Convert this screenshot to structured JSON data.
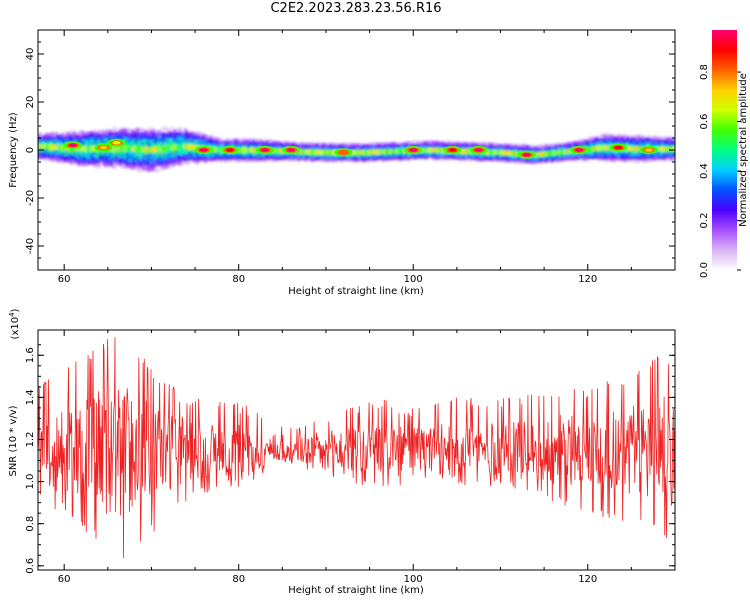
{
  "title": "C2E2.2023.283.23.56.R16",
  "chart_data": [
    {
      "type": "heatmap",
      "title": "",
      "xlabel": "Height of straight line (km)",
      "ylabel": "Frequency (Hz)",
      "xlim": [
        57,
        130
      ],
      "ylim": [
        -50,
        50
      ],
      "xticks": [
        60,
        80,
        100,
        120
      ],
      "yticks": [
        40,
        20,
        0,
        -20,
        -40
      ],
      "colorbar": {
        "label": "Normalized spectral amplitude",
        "range": [
          0,
          0.97
        ],
        "ticks": [
          0.0,
          0.2,
          0.4,
          0.6,
          0.8
        ],
        "colormap": [
          "#ffffff",
          "#d9b3f5",
          "#a64dff",
          "#4b00ff",
          "#0050ff",
          "#00d0ff",
          "#00ff80",
          "#40ff00",
          "#d0ff00",
          "#ffd000",
          "#ff6000",
          "#ff0000",
          "#ff0070"
        ]
      },
      "band": {
        "description_values": "spectral amplitude concentrated near 0 Hz across heights",
        "center_hz": [
          {
            "x": 58,
            "y": 1.5
          },
          {
            "x": 62,
            "y": 0.5
          },
          {
            "x": 66,
            "y": 1.0
          },
          {
            "x": 70,
            "y": 0.0
          },
          {
            "x": 74,
            "y": 1.5
          },
          {
            "x": 78,
            "y": 0.0
          },
          {
            "x": 82,
            "y": 0.0
          },
          {
            "x": 86,
            "y": -0.5
          },
          {
            "x": 90,
            "y": -1.0
          },
          {
            "x": 94,
            "y": -1.0
          },
          {
            "x": 98,
            "y": -0.5
          },
          {
            "x": 102,
            "y": 0.0
          },
          {
            "x": 106,
            "y": -0.5
          },
          {
            "x": 110,
            "y": -1.0
          },
          {
            "x": 114,
            "y": -2.0
          },
          {
            "x": 118,
            "y": -0.5
          },
          {
            "x": 122,
            "y": 1.0
          },
          {
            "x": 126,
            "y": 0.5
          },
          {
            "x": 130,
            "y": 0.5
          }
        ],
        "halfwidth_hz": [
          {
            "x": 58,
            "y": 6
          },
          {
            "x": 62,
            "y": 8
          },
          {
            "x": 66,
            "y": 9
          },
          {
            "x": 70,
            "y": 10
          },
          {
            "x": 74,
            "y": 8
          },
          {
            "x": 78,
            "y": 5
          },
          {
            "x": 82,
            "y": 5
          },
          {
            "x": 86,
            "y": 4
          },
          {
            "x": 90,
            "y": 4
          },
          {
            "x": 94,
            "y": 4
          },
          {
            "x": 98,
            "y": 4
          },
          {
            "x": 102,
            "y": 4
          },
          {
            "x": 106,
            "y": 4
          },
          {
            "x": 110,
            "y": 4
          },
          {
            "x": 114,
            "y": 4
          },
          {
            "x": 118,
            "y": 4
          },
          {
            "x": 122,
            "y": 6
          },
          {
            "x": 126,
            "y": 6
          },
          {
            "x": 130,
            "y": 5
          }
        ],
        "peaks": [
          {
            "x": 61,
            "y": 2,
            "amp": 0.9
          },
          {
            "x": 64.5,
            "y": 1,
            "amp": 0.7
          },
          {
            "x": 66,
            "y": 3,
            "amp": 0.6
          },
          {
            "x": 76,
            "y": 0,
            "amp": 0.95
          },
          {
            "x": 79,
            "y": 0,
            "amp": 0.85
          },
          {
            "x": 83,
            "y": 0,
            "amp": 0.95
          },
          {
            "x": 86,
            "y": 0,
            "amp": 0.9
          },
          {
            "x": 92,
            "y": -1,
            "amp": 0.8
          },
          {
            "x": 100,
            "y": 0,
            "amp": 0.9
          },
          {
            "x": 104.5,
            "y": 0,
            "amp": 0.85
          },
          {
            "x": 107.5,
            "y": 0,
            "amp": 0.9
          },
          {
            "x": 113,
            "y": -2,
            "amp": 0.95
          },
          {
            "x": 119,
            "y": 0,
            "amp": 0.9
          },
          {
            "x": 123.5,
            "y": 1,
            "amp": 0.85
          },
          {
            "x": 127,
            "y": 0,
            "amp": 0.7
          }
        ]
      }
    },
    {
      "type": "line",
      "title": "",
      "xlabel": "Height of straight line (km)",
      "ylabel": "SNR (10 * v/v)",
      "scale_note": "(x10",
      "scale_exp": "4",
      "scale_close": ")",
      "xlim": [
        57,
        130
      ],
      "ylim": [
        0.58,
        1.72
      ],
      "xticks": [
        60,
        80,
        100,
        120
      ],
      "yticks": [
        0.6,
        0.8,
        1.0,
        1.2,
        1.4,
        1.6
      ],
      "ytick_labels": [
        "0.6",
        "0.8",
        "1.0",
        "1.2",
        "1.4",
        "1.6"
      ],
      "color": "#ee2222",
      "series": [
        {
          "values_summary": "noisy SNR trace around 1.15",
          "envelope": [
            {
              "x": 57,
              "lo": 0.9,
              "hi": 1.45
            },
            {
              "x": 60,
              "lo": 0.85,
              "hi": 1.55
            },
            {
              "x": 64,
              "lo": 0.7,
              "hi": 1.65
            },
            {
              "x": 66,
              "lo": 0.6,
              "hi": 1.72
            },
            {
              "x": 70,
              "lo": 0.75,
              "hi": 1.55
            },
            {
              "x": 74,
              "lo": 0.9,
              "hi": 1.4
            },
            {
              "x": 78,
              "lo": 0.95,
              "hi": 1.4
            },
            {
              "x": 82,
              "lo": 1.0,
              "hi": 1.35
            },
            {
              "x": 84,
              "lo": 1.1,
              "hi": 1.25
            },
            {
              "x": 88,
              "lo": 1.05,
              "hi": 1.3
            },
            {
              "x": 92,
              "lo": 1.0,
              "hi": 1.35
            },
            {
              "x": 96,
              "lo": 0.95,
              "hi": 1.4
            },
            {
              "x": 100,
              "lo": 1.0,
              "hi": 1.35
            },
            {
              "x": 104,
              "lo": 0.98,
              "hi": 1.4
            },
            {
              "x": 108,
              "lo": 0.98,
              "hi": 1.4
            },
            {
              "x": 112,
              "lo": 0.95,
              "hi": 1.4
            },
            {
              "x": 116,
              "lo": 0.9,
              "hi": 1.45
            },
            {
              "x": 120,
              "lo": 0.85,
              "hi": 1.45
            },
            {
              "x": 124,
              "lo": 0.8,
              "hi": 1.5
            },
            {
              "x": 128,
              "lo": 0.75,
              "hi": 1.6
            },
            {
              "x": 130,
              "lo": 0.7,
              "hi": 1.6
            }
          ]
        }
      ]
    }
  ]
}
